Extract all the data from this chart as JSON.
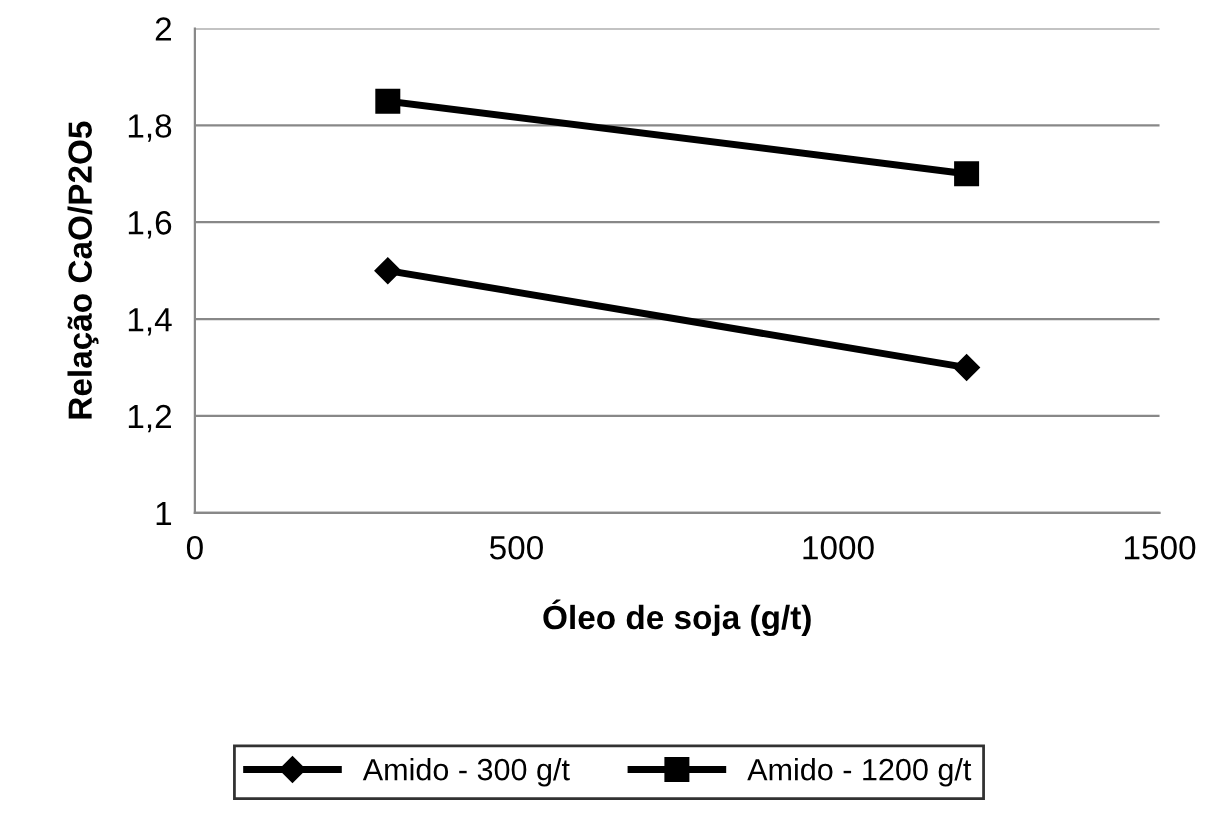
{
  "chart_data": {
    "type": "line",
    "xlabel": "Óleo de soja (g/t)",
    "ylabel": "Relação CaO/P2O5",
    "series": [
      {
        "name": "Amido - 300 g/t",
        "color": "#000000",
        "marker": "diamond",
        "values": [
          1.5,
          1.3
        ]
      },
      {
        "name": "Amido - 1200 g/t",
        "color": "#000000",
        "marker": "square",
        "values": [
          1.85,
          1.7
        ]
      }
    ],
    "x": [
      300,
      1200
    ],
    "xlim": [
      0,
      1500
    ],
    "xticks": [
      0,
      500,
      1000,
      1500
    ],
    "ylim": [
      1,
      2
    ],
    "yticks": [
      1,
      {
        "value": 1.2,
        "label": "1,2"
      },
      {
        "value": 1.4,
        "label": "1,4"
      },
      {
        "value": 1.6,
        "label": "1,6"
      },
      {
        "value": 1.8,
        "label": "1,8"
      },
      2
    ],
    "grid": "y",
    "legend": "bottom"
  }
}
